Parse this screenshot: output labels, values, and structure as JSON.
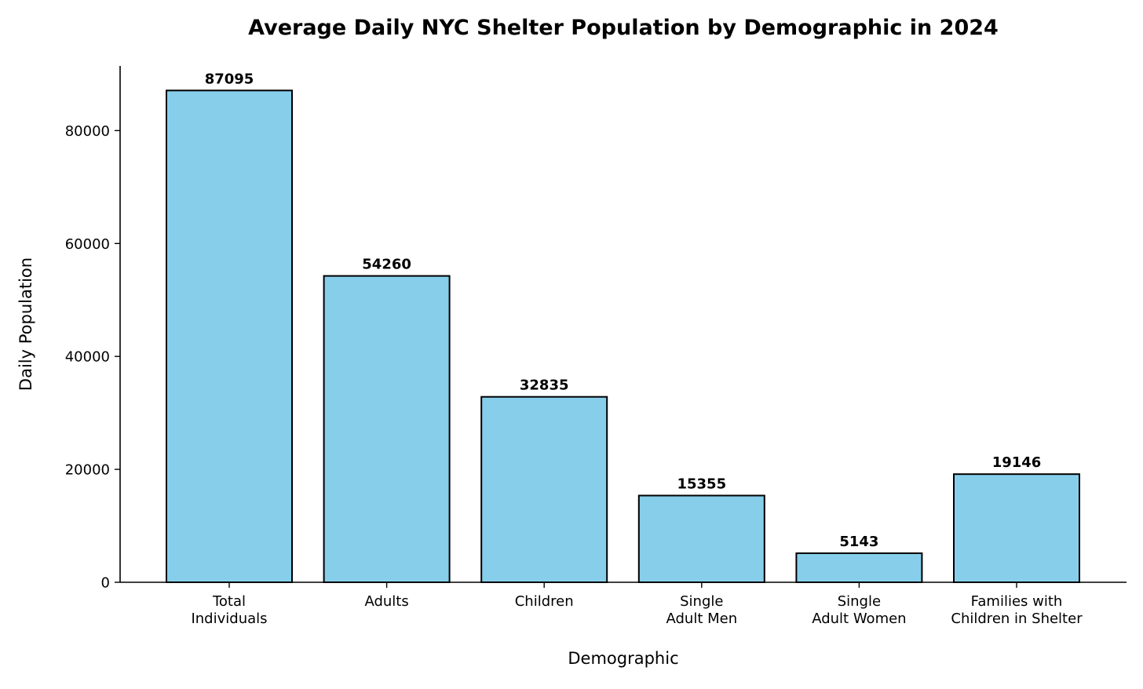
{
  "chart_data": {
    "type": "bar",
    "title": "Average Daily NYC Shelter Population by Demographic in 2024",
    "xlabel": "Demographic",
    "ylabel": "Daily Population",
    "categories": [
      [
        "Total",
        "Individuals"
      ],
      [
        "Adults"
      ],
      [
        "Children"
      ],
      [
        "Single",
        "Adult Men"
      ],
      [
        "Single",
        "Adult Women"
      ],
      [
        "Families with",
        "Children in Shelter"
      ]
    ],
    "values": [
      87095,
      54260,
      32835,
      15355,
      5143,
      19146
    ],
    "value_labels": [
      "87095",
      "54260",
      "32835",
      "15355",
      "5143",
      "19146"
    ],
    "ylim": [
      0,
      91450
    ],
    "yticks": [
      0,
      20000,
      40000,
      60000,
      80000
    ],
    "ytick_labels": [
      "0",
      "20000",
      "40000",
      "60000",
      "80000"
    ],
    "grid": false,
    "colors": {
      "bar_fill": "#87CEEB",
      "bar_edge": "#000000",
      "axis": "#000000"
    }
  }
}
